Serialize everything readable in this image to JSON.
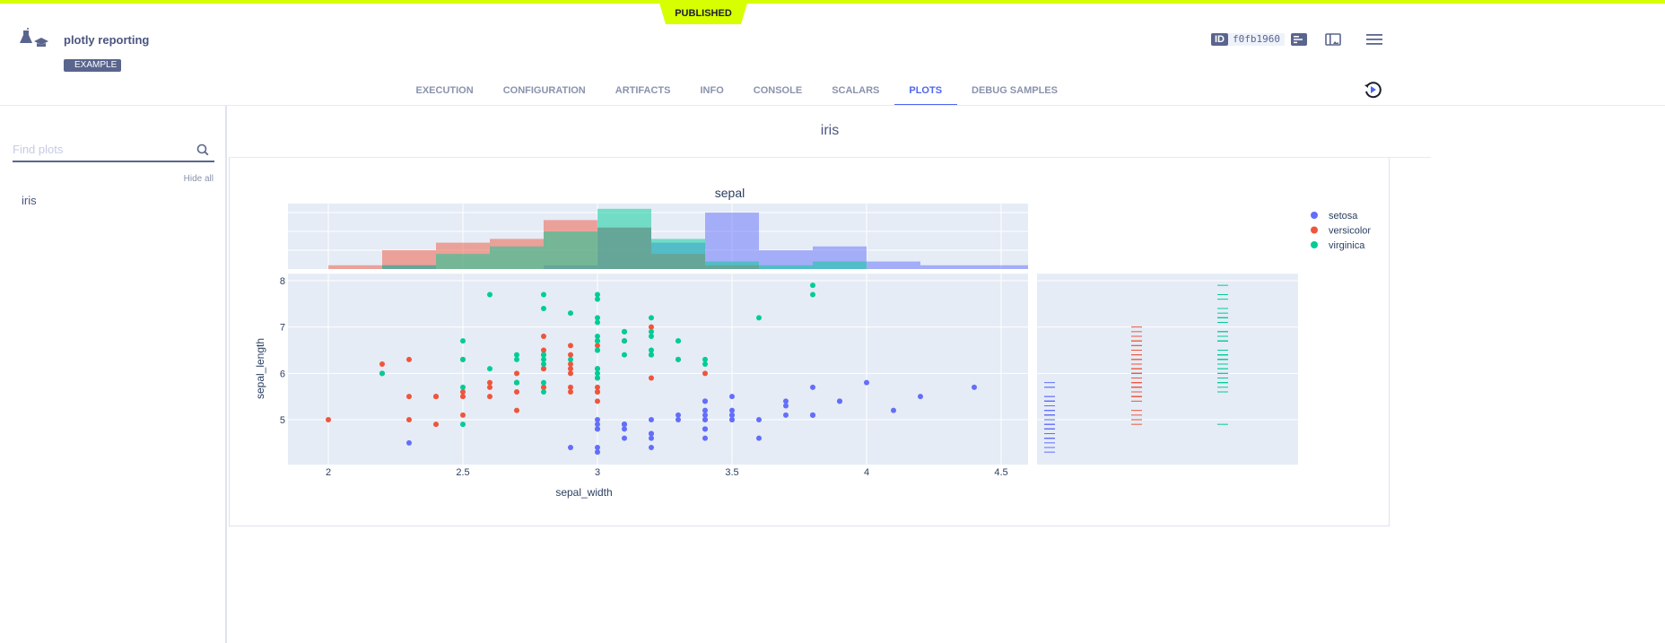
{
  "banner": {
    "status": "PUBLISHED"
  },
  "header": {
    "title": "plotly reporting",
    "tag": "EXAMPLE",
    "id_label": "ID",
    "id_value": "f0fb1960",
    "icons": [
      "experiment-logo-icon",
      "details-icon",
      "panel-layout-icon",
      "menu-icon",
      "refresh-icon"
    ]
  },
  "tabs": [
    {
      "label": "EXECUTION"
    },
    {
      "label": "CONFIGURATION"
    },
    {
      "label": "ARTIFACTS"
    },
    {
      "label": "INFO"
    },
    {
      "label": "CONSOLE"
    },
    {
      "label": "SCALARS"
    },
    {
      "label": "PLOTS",
      "active": true
    },
    {
      "label": "DEBUG SAMPLES"
    }
  ],
  "sidebar": {
    "search_placeholder": "Find plots",
    "hide_all": "Hide all",
    "items": [
      {
        "label": "iris"
      }
    ]
  },
  "main": {
    "title": "iris"
  },
  "chart_data": {
    "type": "scatter",
    "title": "sepal",
    "xlabel": "sepal_width",
    "ylabel": "sepal_length",
    "xlim": [
      1.85,
      4.6
    ],
    "ylim": [
      4.03,
      8.15
    ],
    "xticks": [
      "2",
      "2.5",
      "3",
      "3.5",
      "4",
      "4.5"
    ],
    "yticks": [
      "5",
      "6",
      "7",
      "8"
    ],
    "marginal_x": "histogram",
    "marginal_y": "rug",
    "histogram_bin_width": 0.2,
    "grid": true,
    "legend_position": "top-right",
    "series": [
      {
        "name": "setosa",
        "color": "#636efa",
        "points": [
          [
            3.5,
            5.1
          ],
          [
            3.0,
            4.9
          ],
          [
            3.2,
            4.7
          ],
          [
            3.1,
            4.6
          ],
          [
            3.6,
            5.0
          ],
          [
            3.9,
            5.4
          ],
          [
            3.4,
            4.6
          ],
          [
            3.4,
            5.0
          ],
          [
            2.9,
            4.4
          ],
          [
            3.1,
            4.9
          ],
          [
            3.7,
            5.4
          ],
          [
            3.4,
            4.8
          ],
          [
            3.0,
            4.8
          ],
          [
            3.0,
            4.3
          ],
          [
            4.0,
            5.8
          ],
          [
            4.4,
            5.7
          ],
          [
            3.9,
            5.4
          ],
          [
            3.5,
            5.1
          ],
          [
            3.8,
            5.7
          ],
          [
            3.8,
            5.1
          ],
          [
            3.4,
            5.4
          ],
          [
            3.7,
            5.1
          ],
          [
            3.6,
            4.6
          ],
          [
            3.3,
            5.1
          ],
          [
            3.4,
            4.8
          ],
          [
            3.0,
            5.0
          ],
          [
            3.4,
            5.0
          ],
          [
            3.5,
            5.2
          ],
          [
            3.4,
            5.2
          ],
          [
            3.2,
            4.7
          ],
          [
            3.1,
            4.8
          ],
          [
            3.4,
            5.4
          ],
          [
            4.1,
            5.2
          ],
          [
            4.2,
            5.5
          ],
          [
            3.1,
            4.9
          ],
          [
            3.2,
            5.0
          ],
          [
            3.5,
            5.5
          ],
          [
            3.1,
            4.9
          ],
          [
            3.0,
            4.4
          ],
          [
            3.4,
            5.1
          ],
          [
            3.5,
            5.0
          ],
          [
            2.3,
            4.5
          ],
          [
            3.2,
            4.4
          ],
          [
            3.5,
            5.0
          ],
          [
            3.8,
            5.1
          ],
          [
            3.0,
            4.8
          ],
          [
            3.8,
            5.1
          ],
          [
            3.2,
            4.6
          ],
          [
            3.7,
            5.3
          ],
          [
            3.3,
            5.0
          ]
        ]
      },
      {
        "name": "versicolor",
        "color": "#ef553b",
        "points": [
          [
            3.2,
            7.0
          ],
          [
            3.2,
            6.4
          ],
          [
            3.1,
            6.9
          ],
          [
            2.3,
            5.5
          ],
          [
            2.8,
            6.5
          ],
          [
            2.8,
            5.7
          ],
          [
            3.3,
            6.3
          ],
          [
            2.4,
            4.9
          ],
          [
            2.9,
            6.6
          ],
          [
            2.7,
            5.2
          ],
          [
            2.0,
            5.0
          ],
          [
            3.0,
            5.9
          ],
          [
            2.2,
            6.0
          ],
          [
            2.9,
            6.1
          ],
          [
            2.9,
            5.6
          ],
          [
            3.1,
            6.7
          ],
          [
            3.0,
            5.6
          ],
          [
            2.7,
            5.8
          ],
          [
            2.2,
            6.2
          ],
          [
            2.5,
            5.6
          ],
          [
            3.2,
            5.9
          ],
          [
            2.8,
            6.1
          ],
          [
            2.5,
            6.3
          ],
          [
            2.8,
            6.1
          ],
          [
            2.9,
            6.4
          ],
          [
            3.0,
            6.6
          ],
          [
            2.8,
            6.8
          ],
          [
            3.0,
            6.7
          ],
          [
            2.9,
            6.0
          ],
          [
            2.6,
            5.7
          ],
          [
            2.4,
            5.5
          ],
          [
            2.4,
            5.5
          ],
          [
            2.7,
            5.8
          ],
          [
            2.7,
            6.0
          ],
          [
            3.0,
            5.4
          ],
          [
            3.4,
            6.0
          ],
          [
            3.1,
            6.7
          ],
          [
            2.3,
            6.3
          ],
          [
            3.0,
            5.6
          ],
          [
            2.5,
            5.5
          ],
          [
            2.6,
            5.5
          ],
          [
            3.0,
            6.1
          ],
          [
            2.6,
            5.8
          ],
          [
            2.3,
            5.0
          ],
          [
            2.7,
            5.6
          ],
          [
            3.0,
            5.7
          ],
          [
            2.9,
            5.7
          ],
          [
            2.9,
            6.2
          ],
          [
            2.5,
            5.1
          ],
          [
            2.8,
            5.7
          ]
        ]
      },
      {
        "name": "virginica",
        "color": "#00cc96",
        "points": [
          [
            3.3,
            6.3
          ],
          [
            2.7,
            5.8
          ],
          [
            3.0,
            7.1
          ],
          [
            2.9,
            6.3
          ],
          [
            3.0,
            6.5
          ],
          [
            3.0,
            7.6
          ],
          [
            2.5,
            4.9
          ],
          [
            2.9,
            7.3
          ],
          [
            2.5,
            6.7
          ],
          [
            3.6,
            7.2
          ],
          [
            3.2,
            6.5
          ],
          [
            2.7,
            6.4
          ],
          [
            3.0,
            6.8
          ],
          [
            2.5,
            5.7
          ],
          [
            2.8,
            5.8
          ],
          [
            3.2,
            6.4
          ],
          [
            3.0,
            6.5
          ],
          [
            3.8,
            7.7
          ],
          [
            2.6,
            7.7
          ],
          [
            2.2,
            6.0
          ],
          [
            3.2,
            6.9
          ],
          [
            2.8,
            5.6
          ],
          [
            2.8,
            7.7
          ],
          [
            2.7,
            6.3
          ],
          [
            3.3,
            6.7
          ],
          [
            3.2,
            7.2
          ],
          [
            2.8,
            6.2
          ],
          [
            3.0,
            6.1
          ],
          [
            2.8,
            6.4
          ],
          [
            3.0,
            7.2
          ],
          [
            2.8,
            7.4
          ],
          [
            3.8,
            7.9
          ],
          [
            2.8,
            6.4
          ],
          [
            2.8,
            6.3
          ],
          [
            2.6,
            6.1
          ],
          [
            3.0,
            7.7
          ],
          [
            3.4,
            6.3
          ],
          [
            3.1,
            6.4
          ],
          [
            3.0,
            6.0
          ],
          [
            3.1,
            6.9
          ],
          [
            3.1,
            6.7
          ],
          [
            3.1,
            6.9
          ],
          [
            2.7,
            5.8
          ],
          [
            3.2,
            6.8
          ],
          [
            3.3,
            6.7
          ],
          [
            3.0,
            6.7
          ],
          [
            2.5,
            6.3
          ],
          [
            3.0,
            6.5
          ],
          [
            3.4,
            6.2
          ],
          [
            3.0,
            5.9
          ]
        ]
      }
    ]
  }
}
